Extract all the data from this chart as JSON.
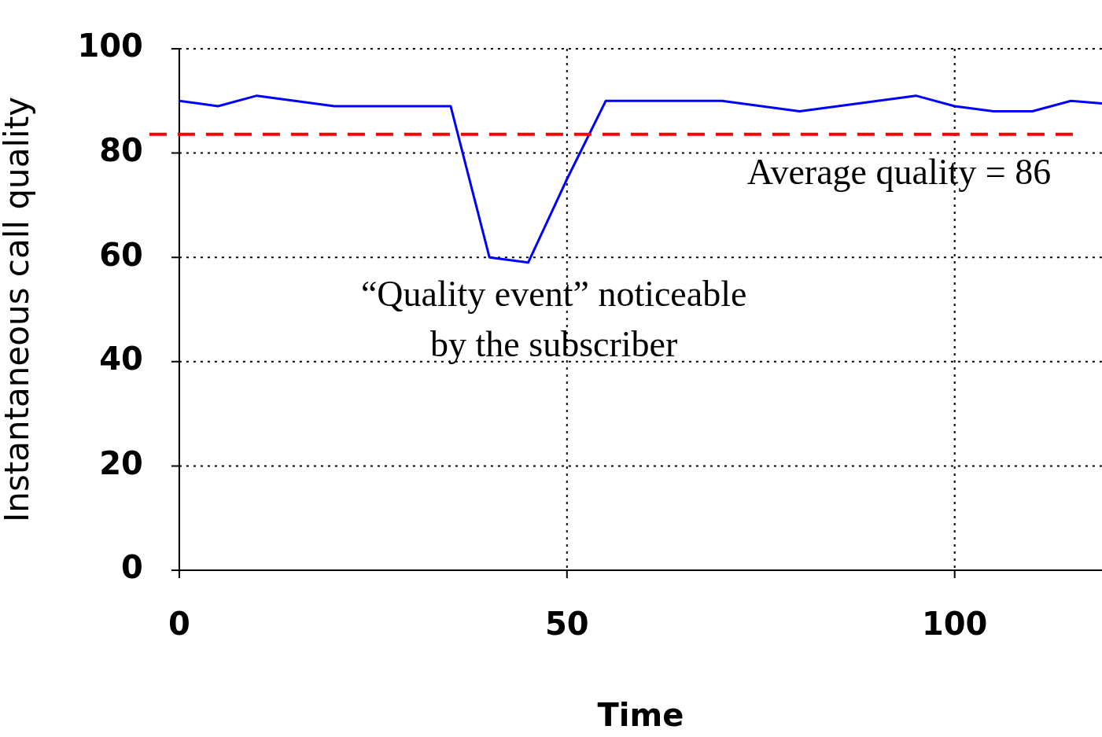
{
  "chart_data": {
    "type": "line",
    "xlabel": "Time",
    "ylabel": "Instantaneous call quality",
    "x": [
      0,
      5,
      10,
      20,
      35,
      40,
      45,
      50,
      55,
      70,
      80,
      95,
      100,
      105,
      110,
      115,
      119
    ],
    "series": [
      {
        "color": "#0000ff",
        "values": [
          90,
          89,
          91,
          89,
          89,
          60,
          59,
          75,
          90,
          90,
          88,
          91,
          89,
          88,
          88,
          90,
          89.5
        ]
      }
    ],
    "xlim": [
      0,
      119
    ],
    "xticks": [
      0,
      50,
      100
    ],
    "ylim": [
      0,
      100
    ],
    "yticks": [
      0,
      20,
      40,
      60,
      80,
      100
    ],
    "grid": true,
    "legend": false,
    "marker": "none",
    "line_style": "solid",
    "ref_lines": [
      {
        "axis": "y",
        "value": 83.6,
        "color": "#ff0000",
        "line_style": "dashed"
      }
    ],
    "annotations": [
      "Average quality = 86",
      "“Quality event” noticeable\nby the subscriber"
    ]
  }
}
